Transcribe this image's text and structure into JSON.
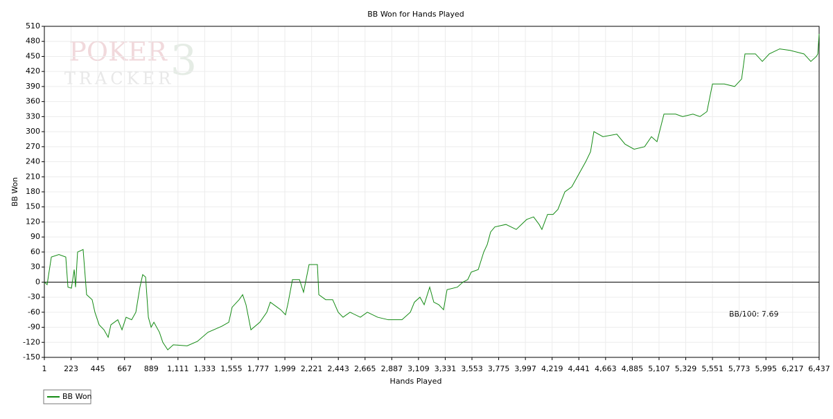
{
  "chart_data": {
    "type": "line",
    "title": "BB Won for Hands Played",
    "xlabel": "Hands Played",
    "ylabel": "BB Won",
    "annotation": "BB/100: 7.69",
    "watermark": {
      "line1": "POKER",
      "line2": "TRACKER",
      "logo": "3"
    },
    "legend": "bottom-left",
    "grid": true,
    "xlim": [
      1,
      6437
    ],
    "ylim": [
      -150,
      510
    ],
    "xticks": [
      1,
      223,
      445,
      667,
      889,
      {
        "value": 1111,
        "label": "1,111"
      },
      {
        "value": 1333,
        "label": "1,333"
      },
      {
        "value": 1555,
        "label": "1,555"
      },
      {
        "value": 1777,
        "label": "1,777"
      },
      {
        "value": 1999,
        "label": "1,999"
      },
      {
        "value": 2221,
        "label": "2,221"
      },
      {
        "value": 2443,
        "label": "2,443"
      },
      {
        "value": 2665,
        "label": "2,665"
      },
      {
        "value": 2887,
        "label": "2,887"
      },
      {
        "value": 3109,
        "label": "3,109"
      },
      {
        "value": 3331,
        "label": "3,331"
      },
      {
        "value": 3553,
        "label": "3,553"
      },
      {
        "value": 3775,
        "label": "3,775"
      },
      {
        "value": 3997,
        "label": "3,997"
      },
      {
        "value": 4219,
        "label": "4,219"
      },
      {
        "value": 4441,
        "label": "4,441"
      },
      {
        "value": 4663,
        "label": "4,663"
      },
      {
        "value": 4885,
        "label": "4,885"
      },
      {
        "value": 5107,
        "label": "5,107"
      },
      {
        "value": 5329,
        "label": "5,329"
      },
      {
        "value": 5551,
        "label": "5,551"
      },
      {
        "value": 5773,
        "label": "5,773"
      },
      {
        "value": 5995,
        "label": "5,995"
      },
      {
        "value": 6217,
        "label": "6,217"
      },
      {
        "value": 6437,
        "label": "6,437"
      }
    ],
    "yticks": [
      -150,
      -120,
      -90,
      -60,
      -30,
      0,
      30,
      60,
      90,
      120,
      150,
      180,
      210,
      240,
      270,
      300,
      330,
      360,
      390,
      420,
      450,
      480,
      510
    ],
    "x": [
      1,
      24,
      59,
      122,
      179,
      197,
      226,
      249,
      260,
      277,
      323,
      352,
      398,
      421,
      456,
      496,
      531,
      554,
      611,
      646,
      680,
      726,
      761,
      795,
      818,
      842,
      865,
      888,
      911,
      957,
      985,
      1026,
      1072,
      1187,
      1273,
      1360,
      1475,
      1533,
      1561,
      1619,
      1648,
      1676,
      1717,
      1791,
      1849,
      1878,
      1935,
      1964,
      2004,
      2027,
      2062,
      2120,
      2154,
      2200,
      2269,
      2281,
      2338,
      2396,
      2442,
      2482,
      2540,
      2626,
      2684,
      2770,
      2857,
      2972,
      3041,
      3075,
      3121,
      3156,
      3202,
      3236,
      3277,
      3317,
      3346,
      3432,
      3478,
      3518,
      3547,
      3605,
      3651,
      3680,
      3708,
      3743,
      3835,
      3921,
      4008,
      4065,
      4111,
      4134,
      4181,
      4227,
      4267,
      4325,
      4382,
      4440,
      4498,
      4538,
      4566,
      4641,
      4756,
      4825,
      4900,
      4987,
      5044,
      5090,
      5148,
      5245,
      5303,
      5389,
      5447,
      5505,
      5551,
      5649,
      5735,
      5793,
      5821,
      5908,
      5965,
      6023,
      6109,
      6196,
      6311,
      6368,
      6414,
      6426,
      6437
    ],
    "series": [
      {
        "name": "BB Won",
        "color": "#138a13",
        "values": [
          0,
          -5,
          50,
          55,
          50,
          -10,
          -12,
          25,
          -10,
          60,
          65,
          -25,
          -35,
          -60,
          -85,
          -95,
          -110,
          -85,
          -75,
          -95,
          -70,
          -75,
          -60,
          -10,
          15,
          10,
          -70,
          -90,
          -80,
          -100,
          -120,
          -135,
          -125,
          -127,
          -118,
          -100,
          -88,
          -80,
          -50,
          -35,
          -25,
          -45,
          -95,
          -80,
          -60,
          -40,
          -50,
          -55,
          -65,
          -40,
          5,
          5,
          -20,
          35,
          35,
          -25,
          -35,
          -35,
          -60,
          -70,
          -60,
          -70,
          -60,
          -70,
          -75,
          -75,
          -60,
          -40,
          -30,
          -45,
          -10,
          -40,
          -45,
          -55,
          -15,
          -10,
          0,
          5,
          20,
          25,
          60,
          75,
          100,
          110,
          115,
          105,
          125,
          130,
          115,
          105,
          135,
          135,
          145,
          180,
          190,
          215,
          240,
          260,
          300,
          290,
          295,
          275,
          265,
          270,
          290,
          280,
          335,
          335,
          330,
          335,
          330,
          340,
          395,
          395,
          390,
          405,
          455,
          455,
          440,
          455,
          465,
          462,
          455,
          440,
          450,
          455,
          495
        ]
      }
    ]
  }
}
